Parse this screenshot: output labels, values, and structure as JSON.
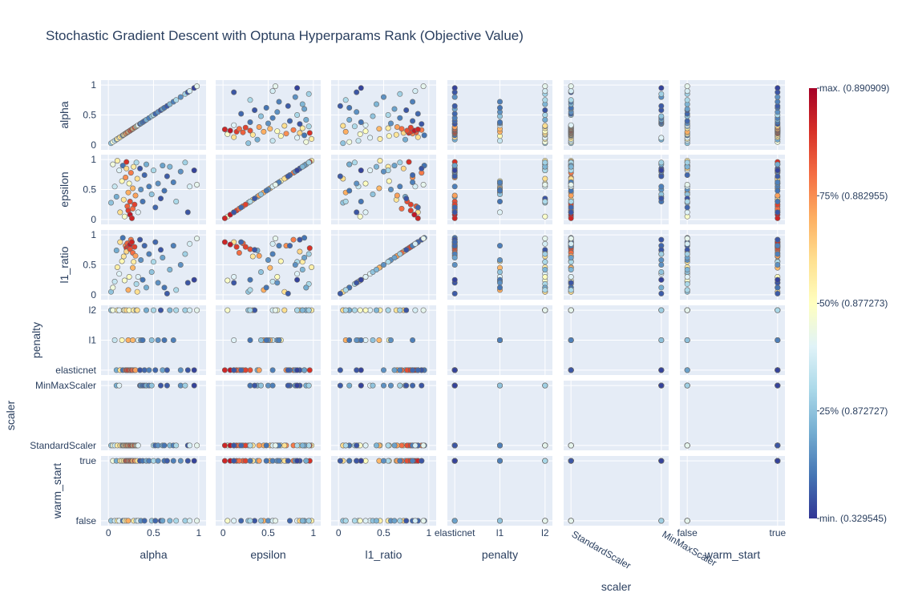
{
  "chart_data": {
    "type": "scatter",
    "title": "Stochastic Gradient Descent with Optuna Hyperparams Rank (Objective Value)",
    "variables": [
      {
        "name": "alpha",
        "kind": "numeric",
        "range": [
          0,
          1
        ],
        "ticks": [
          {
            "v": 0,
            "label": "0"
          },
          {
            "v": 0.5,
            "label": "0.5"
          },
          {
            "v": 1,
            "label": "1"
          }
        ]
      },
      {
        "name": "epsilon",
        "kind": "numeric",
        "range": [
          0,
          1
        ],
        "ticks": [
          {
            "v": 0,
            "label": "0"
          },
          {
            "v": 0.5,
            "label": "0.5"
          },
          {
            "v": 1,
            "label": "1"
          }
        ]
      },
      {
        "name": "l1_ratio",
        "kind": "numeric",
        "range": [
          0,
          1
        ],
        "ticks": [
          {
            "v": 0,
            "label": "0"
          },
          {
            "v": 0.5,
            "label": "0.5"
          },
          {
            "v": 1,
            "label": "1"
          }
        ]
      },
      {
        "name": "penalty",
        "kind": "categorical",
        "categories": [
          "elasticnet",
          "l1",
          "l2"
        ]
      },
      {
        "name": "scaler",
        "kind": "categorical",
        "categories": [
          "StandardScaler",
          "MinMaxScaler"
        ]
      },
      {
        "name": "warm_start",
        "kind": "categorical",
        "categories": [
          "false",
          "true"
        ]
      }
    ],
    "colorbar": {
      "colorscale": "RdYlBu_r",
      "colors": [
        "#313695",
        "#4575b4",
        "#74add1",
        "#abd9e9",
        "#e0f3f8",
        "#ffffbf",
        "#fee090",
        "#fdae61",
        "#f46d43",
        "#d73027",
        "#a50026"
      ],
      "ticks": [
        {
          "pos": 1,
          "label": "max. (0.890909)"
        },
        {
          "pos": 0.75,
          "label": "75% (0.882955)"
        },
        {
          "pos": 0.5,
          "label": "50% (0.877273)"
        },
        {
          "pos": 0.25,
          "label": "25% (0.872727)"
        },
        {
          "pos": 0,
          "label": "min. (0.329545)"
        }
      ]
    },
    "points": [
      [
        0.03,
        0.28,
        0.05,
        "l2",
        "StandardScaler",
        "false",
        0.25
      ],
      [
        0.05,
        0.92,
        0.12,
        "l2",
        "StandardScaler",
        "true",
        0.45
      ],
      [
        0.07,
        0.55,
        0.22,
        "l1",
        "StandardScaler",
        "false",
        0.35
      ],
      [
        0.09,
        0.38,
        0.74,
        "elasticnet",
        "MinMaxScaler",
        "true",
        0.2
      ],
      [
        0.1,
        0.98,
        0.46,
        "l2",
        "StandardScaler",
        "false",
        0.55
      ],
      [
        0.12,
        0.82,
        0.35,
        "l2",
        "MinMaxScaler",
        "false",
        0.4
      ],
      [
        0.13,
        0.12,
        0.88,
        "elasticnet",
        "StandardScaler",
        "true",
        0.6
      ],
      [
        0.15,
        0.64,
        0.56,
        "l1",
        "StandardScaler",
        "true",
        0.52
      ],
      [
        0.16,
        0.9,
        0.95,
        "elasticnet",
        "StandardScaler",
        "false",
        0.1
      ],
      [
        0.17,
        0.33,
        0.64,
        "l2",
        "StandardScaler",
        "true",
        0.58
      ],
      [
        0.18,
        0.05,
        0.24,
        "l2",
        "StandardScaler",
        "false",
        0.48
      ],
      [
        0.19,
        0.7,
        0.82,
        "elasticnet",
        "StandardScaler",
        "true",
        0.75
      ],
      [
        0.2,
        0.96,
        0.78,
        "elasticnet",
        "StandardScaler",
        "true",
        0.9
      ],
      [
        0.2,
        0.85,
        0.72,
        "l2",
        "StandardScaler",
        "false",
        0.62
      ],
      [
        0.21,
        0.22,
        0.86,
        "elasticnet",
        "StandardScaler",
        "true",
        0.82
      ],
      [
        0.22,
        0.15,
        0.8,
        "elasticnet",
        "StandardScaler",
        "true",
        0.88
      ],
      [
        0.22,
        0.45,
        0.08,
        "l1",
        "StandardScaler",
        "false",
        0.7
      ],
      [
        0.23,
        0.6,
        0.3,
        "l2",
        "StandardScaler",
        "true",
        0.5
      ],
      [
        0.24,
        0.08,
        0.84,
        "elasticnet",
        "StandardScaler",
        "true",
        0.95
      ],
      [
        0.24,
        0.3,
        0.76,
        "elasticnet",
        "StandardScaler",
        "true",
        0.85
      ],
      [
        0.25,
        0.78,
        0.92,
        "elasticnet",
        "StandardScaler",
        "true",
        0.78
      ],
      [
        0.26,
        0.02,
        0.88,
        "elasticnet",
        "StandardScaler",
        "true",
        0.92
      ],
      [
        0.27,
        0.18,
        0.7,
        "elasticnet",
        "StandardScaler",
        "true",
        0.8
      ],
      [
        0.27,
        0.52,
        0.45,
        "l1",
        "StandardScaler",
        "true",
        0.68
      ],
      [
        0.28,
        0.88,
        0.55,
        "l2",
        "StandardScaler",
        "false",
        0.56
      ],
      [
        0.29,
        0.25,
        0.8,
        "elasticnet",
        "StandardScaler",
        "true",
        0.87
      ],
      [
        0.3,
        0.4,
        0.65,
        "elasticnet",
        "StandardScaler",
        "true",
        0.72
      ],
      [
        0.31,
        0.95,
        0.18,
        "l2",
        "StandardScaler",
        "false",
        0.3
      ],
      [
        0.32,
        0.68,
        0.05,
        "l2",
        "StandardScaler",
        "true",
        0.6
      ],
      [
        0.33,
        0.12,
        0.3,
        "l1",
        "StandardScaler",
        "false",
        0.4
      ],
      [
        0.35,
        0.85,
        0.92,
        "elasticnet",
        "MinMaxScaler",
        "true",
        0.05
      ],
      [
        0.36,
        0.5,
        0.58,
        "l1",
        "MinMaxScaler",
        "false",
        0.15
      ],
      [
        0.38,
        0.3,
        0.25,
        "l1",
        "MinMaxScaler",
        "true",
        0.1
      ],
      [
        0.4,
        0.74,
        0.82,
        "elasticnet",
        "MinMaxScaler",
        "false",
        0.08
      ],
      [
        0.42,
        0.92,
        0.12,
        "l2",
        "MinMaxScaler",
        "true",
        0.2
      ],
      [
        0.45,
        0.55,
        0.68,
        "elasticnet",
        "MinMaxScaler",
        "true",
        0.12
      ],
      [
        0.48,
        0.42,
        0.38,
        "l1",
        "MinMaxScaler",
        "false",
        0.25
      ],
      [
        0.5,
        0.82,
        0.55,
        "l2",
        "StandardScaler",
        "true",
        0.3
      ],
      [
        0.52,
        0.2,
        0.88,
        "elasticnet",
        "StandardScaler",
        "false",
        0.08
      ],
      [
        0.55,
        0.6,
        0.2,
        "l1",
        "StandardScaler",
        "true",
        0.15
      ],
      [
        0.58,
        0.35,
        0.75,
        "l2",
        "MinMaxScaler",
        "false",
        0.05
      ],
      [
        0.6,
        0.9,
        0.62,
        "elasticnet",
        "StandardScaler",
        "false",
        0.18
      ],
      [
        0.62,
        0.48,
        0.12,
        "l1",
        "StandardScaler",
        "true",
        0.1
      ],
      [
        0.65,
        0.72,
        0.02,
        "elasticnet",
        "MinMaxScaler",
        "true",
        0.06
      ],
      [
        0.68,
        0.88,
        0.42,
        "l2",
        "StandardScaler",
        "false",
        0.22
      ],
      [
        0.72,
        0.62,
        0.82,
        "l1",
        "StandardScaler",
        "true",
        0.12
      ],
      [
        0.75,
        0.3,
        0.08,
        "l2",
        "StandardScaler",
        "false",
        0.3
      ],
      [
        0.8,
        0.8,
        0.5,
        "elasticnet",
        "MinMaxScaler",
        "true",
        0.15
      ],
      [
        0.85,
        0.95,
        0.68,
        "l2",
        "MinMaxScaler",
        "false",
        0.28
      ],
      [
        0.88,
        0.12,
        0.2,
        "elasticnet",
        "StandardScaler",
        "true",
        0.05
      ],
      [
        0.9,
        0.55,
        0.85,
        "l2",
        "StandardScaler",
        "false",
        0.38
      ],
      [
        0.95,
        0.82,
        0.25,
        "elasticnet",
        "MinMaxScaler",
        "true",
        0.02
      ],
      [
        0.98,
        0.58,
        0.94,
        "l2",
        "StandardScaler",
        "false",
        0.42
      ]
    ]
  }
}
